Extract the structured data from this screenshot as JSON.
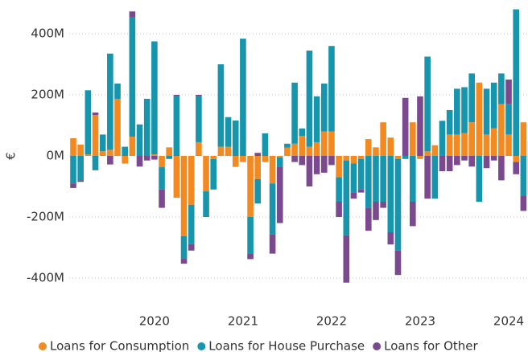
{
  "chart_data": {
    "type": "bar",
    "stacked": true,
    "y_label": "€",
    "categories": [
      null,
      null,
      null,
      null,
      null,
      null,
      null,
      null,
      null,
      null,
      null,
      "2020",
      null,
      null,
      null,
      null,
      null,
      null,
      null,
      null,
      null,
      null,
      null,
      "2021",
      null,
      null,
      null,
      null,
      null,
      null,
      null,
      null,
      null,
      null,
      null,
      "2022",
      null,
      null,
      null,
      null,
      null,
      null,
      null,
      null,
      null,
      null,
      null,
      "2023",
      null,
      null,
      null,
      null,
      null,
      null,
      null,
      null,
      null,
      null,
      null,
      "2024",
      null,
      null,
      null
    ],
    "series": [
      {
        "name": "Loans for Consumption",
        "color": "#f28a21",
        "values": [
          58,
          37,
          5,
          134,
          15,
          20,
          187,
          -25,
          63,
          0,
          0,
          5,
          -37,
          28,
          -137,
          -263,
          -160,
          45,
          -116,
          -10,
          30,
          30,
          -36,
          -20,
          -200,
          -76,
          -20,
          -90,
          -5,
          27,
          40,
          65,
          30,
          45,
          80,
          80,
          -70,
          -15,
          -25,
          -10,
          55,
          28,
          110,
          60,
          -10,
          0,
          110,
          -10,
          15,
          35,
          0,
          70,
          70,
          75,
          110,
          240,
          70,
          90,
          170,
          70,
          -20,
          110,
          50
        ]
      },
      {
        "name": "Loans for House Purchase",
        "color": "#1695ad",
        "values": [
          -90,
          -80,
          210,
          -47,
          55,
          315,
          50,
          30,
          390,
          103,
          187,
          370,
          -73,
          -10,
          195,
          -74,
          -129,
          150,
          -84,
          -100,
          270,
          97,
          116,
          384,
          -120,
          -80,
          74,
          -167,
          -30,
          13,
          200,
          25,
          315,
          150,
          157,
          280,
          -80,
          -245,
          -95,
          -100,
          -170,
          -150,
          -150,
          -250,
          -300,
          -10,
          -150,
          0,
          310,
          -140,
          115,
          80,
          150,
          150,
          160,
          -150,
          150,
          150,
          100,
          100,
          480,
          -130,
          -130
        ]
      },
      {
        "name": "Loans for Other",
        "color": "#7b4a8e",
        "values": [
          -15,
          -5,
          0,
          8,
          0,
          -28,
          0,
          0,
          20,
          -35,
          -15,
          -12,
          -60,
          0,
          5,
          -16,
          -21,
          5,
          0,
          0,
          0,
          0,
          0,
          0,
          -18,
          10,
          0,
          -63,
          -185,
          0,
          -20,
          -30,
          -100,
          -60,
          -55,
          -30,
          -50,
          -155,
          -20,
          -10,
          -75,
          -60,
          -20,
          -40,
          -80,
          190,
          -80,
          195,
          -140,
          0,
          -50,
          -50,
          -30,
          -15,
          -35,
          0,
          -40,
          -15,
          -80,
          80,
          -40,
          -50,
          0
        ]
      }
    ],
    "ylim": [
      -480,
      480
    ],
    "yticks": [
      {
        "value": -400,
        "label": "-400M"
      },
      {
        "value": -200,
        "label": "-200M"
      },
      {
        "value": 0,
        "label": "0M"
      },
      {
        "value": 200,
        "label": "200M"
      },
      {
        "value": 400,
        "label": "400M"
      }
    ],
    "grid": true,
    "legend": "bottom"
  }
}
